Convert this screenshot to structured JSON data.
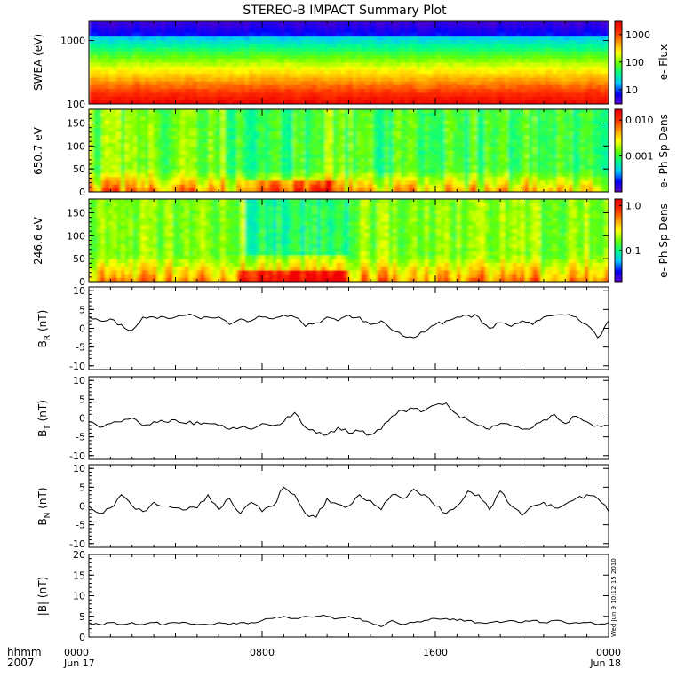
{
  "title": "STEREO-B IMPACT Summary Plot",
  "time_axis": {
    "row1_label": "hhmm",
    "row2_label": "2007",
    "ticks": [
      {
        "time": "0000",
        "date": "Jun 17"
      },
      {
        "time": "0800",
        "date": ""
      },
      {
        "time": "1600",
        "date": ""
      },
      {
        "time": "0000",
        "date": "Jun 18"
      }
    ]
  },
  "timestamp": "Wed Jun  9 10:12:15 2010",
  "colors": {
    "colormap": [
      "#5a00c8",
      "#0000ff",
      "#00c8ff",
      "#00ff88",
      "#66ff00",
      "#ffff00",
      "#ffa000",
      "#ff3000",
      "#f00000"
    ],
    "line": "#000000",
    "background": "#ffffff"
  },
  "chart_data": [
    {
      "type": "heatmap",
      "panel": "swea",
      "ylabel": "SWEA (eV)",
      "yscale": "log",
      "ylim": [
        100,
        2000
      ],
      "yticks": [
        "100",
        "1000"
      ],
      "colorbar": {
        "label": "e- Flux",
        "ticks": [
          "10",
          "100",
          "1000"
        ],
        "scale": "log",
        "range": [
          3,
          3000
        ]
      }
    },
    {
      "type": "heatmap",
      "panel": "pad_650",
      "ylabel": "650.7 eV",
      "ylim": [
        0,
        180
      ],
      "yticks": [
        "0",
        "50",
        "100",
        "150"
      ],
      "colorbar": {
        "label": "e- Ph Sp Dens",
        "ticks": [
          "0.001",
          "0.010"
        ],
        "scale": "log",
        "range": [
          0.0001,
          0.02
        ]
      }
    },
    {
      "type": "heatmap",
      "panel": "pad_246",
      "ylabel": "246.6 eV",
      "ylim": [
        0,
        180
      ],
      "yticks": [
        "0",
        "50",
        "100",
        "150"
      ],
      "colorbar": {
        "label": "e- Ph Sp Dens",
        "ticks": [
          "0.1",
          "1.0"
        ],
        "scale": "log",
        "range": [
          0.02,
          1.4
        ]
      }
    },
    {
      "type": "line",
      "panel": "br",
      "ylabel_main": "B",
      "ylabel_sub": "R",
      "ylabel_unit": " (nT)",
      "ylim": [
        -11,
        11
      ],
      "yticks": [
        "-10",
        "-5",
        "0",
        "5",
        "10"
      ],
      "x_hours": [
        0,
        0.5,
        1,
        1.5,
        2,
        2.5,
        3,
        3.5,
        4,
        4.5,
        5,
        5.5,
        6,
        6.5,
        7,
        7.5,
        8,
        8.5,
        9,
        9.5,
        10,
        10.5,
        11,
        11.5,
        12,
        12.5,
        13,
        13.5,
        14,
        14.5,
        15,
        15.5,
        16,
        16.5,
        17,
        17.5,
        18,
        18.5,
        19,
        19.5,
        20,
        20.5,
        21,
        21.5,
        22,
        22.5,
        23,
        23.5,
        24
      ],
      "y": [
        3,
        2,
        2.5,
        1,
        -0.5,
        3,
        3,
        3,
        3,
        3.5,
        3,
        3,
        3,
        1,
        2.5,
        2,
        3,
        2.5,
        3.5,
        3,
        0.5,
        1.5,
        3,
        2,
        3.5,
        3,
        1,
        2,
        -0.5,
        -2,
        -2.5,
        -1,
        1,
        2,
        3,
        3.5,
        3,
        0,
        1.5,
        0.5,
        2,
        1,
        3,
        3.5,
        3.5,
        3,
        1,
        -2.5,
        2
      ]
    },
    {
      "type": "line",
      "panel": "bt",
      "ylabel_main": "B",
      "ylabel_sub": "T",
      "ylabel_unit": " (nT)",
      "ylim": [
        -11,
        11
      ],
      "yticks": [
        "-10",
        "-5",
        "0",
        "5",
        "10"
      ],
      "x_hours": [
        0,
        0.5,
        1,
        1.5,
        2,
        2.5,
        3,
        3.5,
        4,
        4.5,
        5,
        5.5,
        6,
        6.5,
        7,
        7.5,
        8,
        8.5,
        9,
        9.5,
        10,
        10.5,
        11,
        11.5,
        12,
        12.5,
        13,
        13.5,
        14,
        14.5,
        15,
        15.5,
        16,
        16.5,
        17,
        17.5,
        18,
        18.5,
        19,
        19.5,
        20,
        20.5,
        21,
        21.5,
        22,
        22.5,
        23,
        23.5,
        24
      ],
      "y": [
        -1,
        -2.5,
        -1.5,
        -1,
        0,
        -2,
        -1,
        -1,
        -0.5,
        -1.5,
        -1,
        -1.5,
        -2,
        -3,
        -2.5,
        -3,
        -1.5,
        -2,
        -1,
        1.5,
        -2.5,
        -4,
        -4.5,
        -2.5,
        -4,
        -3.5,
        -4.5,
        -3,
        0.5,
        2,
        2.5,
        2,
        3.5,
        4,
        1,
        -0.5,
        -2,
        -3,
        -1.5,
        -2,
        -3,
        -2.5,
        -0.5,
        1,
        -1.5,
        0.5,
        -1,
        -2,
        -2
      ]
    },
    {
      "type": "line",
      "panel": "bn",
      "ylabel_main": "B",
      "ylabel_sub": "N",
      "ylabel_unit": " (nT)",
      "ylim": [
        -11,
        11
      ],
      "yticks": [
        "-10",
        "-5",
        "0",
        "5",
        "10"
      ],
      "x_hours": [
        0,
        0.5,
        1,
        1.5,
        2,
        2.5,
        3,
        3.5,
        4,
        4.5,
        5,
        5.5,
        6,
        6.5,
        7,
        7.5,
        8,
        8.5,
        9,
        9.5,
        10,
        10.5,
        11,
        11.5,
        12,
        12.5,
        13,
        13.5,
        14,
        14.5,
        15,
        15.5,
        16,
        16.5,
        17,
        17.5,
        18,
        18.5,
        19,
        19.5,
        20,
        20.5,
        21,
        21.5,
        22,
        22.5,
        23,
        23.5,
        24
      ],
      "y": [
        0,
        -2,
        -0.5,
        3,
        0,
        -1.5,
        1,
        0,
        -0.5,
        -1,
        -0.5,
        3,
        -1,
        2,
        -2,
        1,
        -1.5,
        0,
        5,
        3,
        -2,
        -3,
        2,
        0.5,
        0,
        3,
        1.5,
        -1,
        3,
        2,
        4.5,
        3,
        0,
        -2,
        0,
        4,
        3,
        -1,
        4,
        0,
        -2.5,
        0,
        1,
        -0.5,
        0.5,
        2,
        3,
        2,
        -1.5
      ]
    },
    {
      "type": "line",
      "panel": "bmag",
      "ylabel_main": "|B|",
      "ylabel_sub": "",
      "ylabel_unit": " (nT)",
      "ylim": [
        0,
        20
      ],
      "yticks": [
        "0",
        "5",
        "10",
        "15",
        "20"
      ],
      "x_hours": [
        0,
        0.5,
        1,
        1.5,
        2,
        2.5,
        3,
        3.5,
        4,
        4.5,
        5,
        5.5,
        6,
        6.5,
        7,
        7.5,
        8,
        8.5,
        9,
        9.5,
        10,
        10.5,
        11,
        11.5,
        12,
        12.5,
        13,
        13.5,
        14,
        14.5,
        15,
        15.5,
        16,
        16.5,
        17,
        17.5,
        18,
        18.5,
        19,
        19.5,
        20,
        20.5,
        21,
        21.5,
        22,
        22.5,
        23,
        23.5,
        24
      ],
      "y": [
        3.5,
        3,
        3.5,
        3,
        3.5,
        3,
        3.5,
        3,
        3.5,
        3.5,
        3,
        3,
        3.5,
        3,
        3.5,
        3.5,
        4,
        4.5,
        5,
        4.5,
        5,
        5,
        5,
        4.5,
        5,
        4.5,
        3.5,
        2.5,
        4,
        3,
        3.5,
        4,
        4.5,
        4.5,
        4,
        4,
        3.5,
        3.5,
        3.5,
        4,
        3.5,
        4,
        3.5,
        4,
        3.5,
        3.5,
        3.5,
        3,
        3.5
      ]
    }
  ]
}
